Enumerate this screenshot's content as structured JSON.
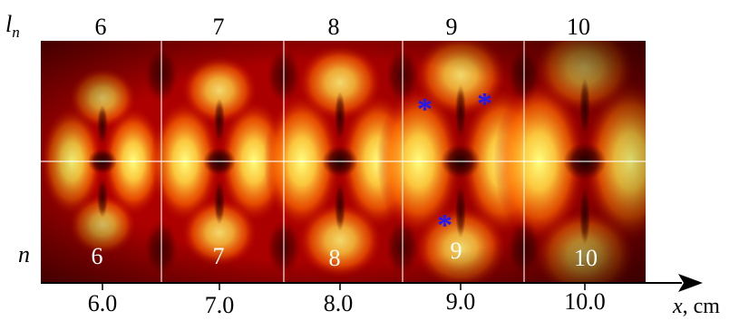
{
  "figure": {
    "top_axis": {
      "symbol": "l",
      "subscript": "n",
      "values": [
        "6",
        "7",
        "8",
        "9",
        "10"
      ]
    },
    "bottom_axis": {
      "ticks": [
        "6.0",
        "7.0",
        "8.0",
        "9.0",
        "10.0"
      ],
      "unit_var": "x",
      "unit_rest": ", cm"
    },
    "inner": {
      "n_symbol": "n",
      "n_values": [
        "6",
        "7",
        "8",
        "9",
        "10"
      ]
    },
    "markers": [
      "*",
      "*",
      "*"
    ],
    "colors": {
      "background": "#ffffff",
      "map_dark": "#1a0000",
      "map_red": "#c00000",
      "map_orange": "#ff7a00",
      "map_yellow": "#ffff66",
      "marker": "#1a1aff",
      "guides": "#ffffff"
    }
  }
}
